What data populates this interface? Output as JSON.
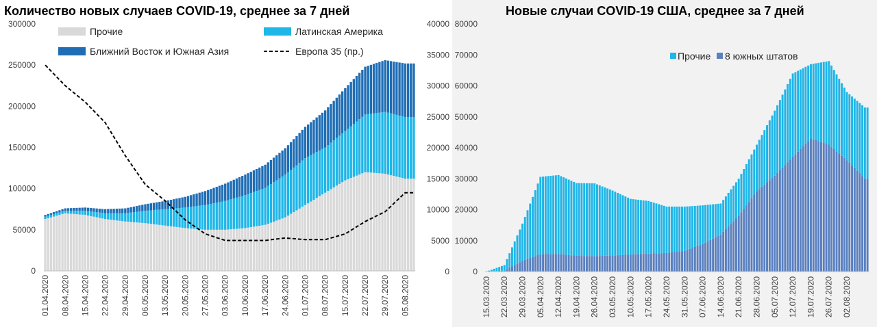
{
  "chart_data": [
    {
      "type": "bar",
      "stacked": true,
      "title": "Количество новых случаев COVID-19, среднее за 7 дней",
      "ylim": [
        0,
        300000
      ],
      "y_ticks": [
        "300000",
        "250000",
        "200000",
        "150000",
        "100000",
        "50000",
        "0"
      ],
      "y2lim": [
        0,
        300
      ],
      "x_tick_labels": [
        "01.04.2020",
        "08.04.2020",
        "15.04.2020",
        "22.04.2020",
        "29.04.2020",
        "06.05.2020",
        "13.05.2020",
        "20.05.2020",
        "27.05.2020",
        "03.06.2020",
        "10.06.2020",
        "17.06.2020",
        "24.06.2020",
        "01.07.2020",
        "08.07.2020",
        "15.07.2020",
        "22.07.2020",
        "29.07.2020",
        "05.08.2020"
      ],
      "x_tick_days": [
        0,
        7,
        14,
        21,
        28,
        35,
        42,
        49,
        56,
        63,
        70,
        77,
        84,
        91,
        98,
        105,
        112,
        119,
        126
      ],
      "grid": false,
      "legend_position": "top",
      "legend": {
        "others": "Прочие",
        "latam": "Латинская Америка",
        "me_sa": "Ближний Восток и Южная Азия",
        "europe": "Европа 35 (пр.)"
      },
      "colors": {
        "others": "#d9d9d9",
        "latam": "#1fb6e8",
        "me_sa": "#1f6eb5",
        "europe": "#000000"
      },
      "series": [
        {
          "name": "Прочие",
          "key": "others",
          "days": [
            0,
            7,
            14,
            21,
            28,
            35,
            42,
            49,
            56,
            63,
            70,
            77,
            84,
            91,
            98,
            105,
            112,
            119,
            126
          ],
          "values": [
            63000,
            70000,
            68000,
            63000,
            60000,
            58000,
            55000,
            52000,
            50000,
            50000,
            52000,
            56000,
            65000,
            80000,
            95000,
            110000,
            120000,
            118000,
            112000
          ]
        },
        {
          "name": "Латинская Америка",
          "key": "latam",
          "days": [
            0,
            7,
            14,
            21,
            28,
            35,
            42,
            49,
            56,
            63,
            70,
            77,
            84,
            91,
            98,
            105,
            112,
            119,
            126
          ],
          "values": [
            3000,
            3000,
            5000,
            7000,
            10000,
            15000,
            20000,
            25000,
            30000,
            35000,
            40000,
            45000,
            52000,
            57000,
            55000,
            60000,
            70000,
            75000,
            75000
          ]
        },
        {
          "name": "Ближний Восток и Южная Азия",
          "key": "me_sa",
          "days": [
            0,
            7,
            14,
            21,
            28,
            35,
            42,
            49,
            56,
            63,
            70,
            77,
            84,
            91,
            98,
            105,
            112,
            119,
            126
          ],
          "values": [
            2000,
            3000,
            4000,
            5000,
            6000,
            8000,
            10000,
            13000,
            17000,
            21000,
            25000,
            28000,
            32000,
            38000,
            45000,
            52000,
            58000,
            63000,
            65000
          ]
        },
        {
          "name": "Европа 35 (пр.)",
          "key": "europe",
          "axis": "secondary",
          "days": [
            0,
            7,
            14,
            21,
            28,
            35,
            42,
            49,
            56,
            63,
            70,
            77,
            84,
            91,
            98,
            105,
            112,
            119,
            126
          ],
          "values": [
            250,
            225,
            205,
            180,
            140,
            105,
            85,
            62,
            45,
            37,
            37,
            37,
            40,
            38,
            38,
            45,
            60,
            72,
            95
          ]
        }
      ]
    },
    {
      "type": "bar",
      "stacked": true,
      "title": "Новые случаи COVID-19  США, среднее за 7 дней",
      "ylim": [
        0,
        80000
      ],
      "y_ticks": [
        "80000",
        "70000",
        "60000",
        "50000",
        "40000",
        "30000",
        "20000",
        "10000",
        "0"
      ],
      "y_ticks_outer": [
        "40000",
        "35000",
        "30000",
        "25000",
        "20000",
        "15000",
        "10000",
        "5000",
        "0"
      ],
      "x_tick_labels": [
        "15.03.2020",
        "22.03.2020",
        "29.03.2020",
        "05.04.2020",
        "12.04.2020",
        "19.04.2020",
        "26.04.2020",
        "03.05.2020",
        "10.05.2020",
        "17.05.2020",
        "24.05.2020",
        "31.05.2020",
        "07.06.2020",
        "14.06.2020",
        "21.06.2020",
        "28.06.2020",
        "05.07.2020",
        "12.07.2020",
        "19.07.2020",
        "26.07.2020",
        "02.08.2020"
      ],
      "x_tick_days": [
        0,
        7,
        14,
        21,
        28,
        35,
        42,
        49,
        56,
        63,
        70,
        77,
        84,
        91,
        98,
        105,
        112,
        119,
        126,
        133,
        140
      ],
      "grid": false,
      "legend_position": "top",
      "legend": {
        "others": "Прочие",
        "south": "8 южных штатов"
      },
      "colors": {
        "others": "#1fb6e8",
        "south": "#5a80c0"
      },
      "series": [
        {
          "name": "8 южных штатов",
          "key": "south",
          "days": [
            0,
            7,
            14,
            21,
            28,
            35,
            42,
            49,
            56,
            63,
            70,
            77,
            84,
            91,
            98,
            105,
            112,
            119,
            126,
            133,
            140,
            147
          ],
          "values": [
            0,
            300,
            3500,
            5600,
            5700,
            5100,
            5000,
            5200,
            5500,
            5800,
            6000,
            6700,
            8900,
            12000,
            18000,
            26000,
            31000,
            37000,
            43000,
            41000,
            36000,
            30000
          ]
        },
        {
          "name": "Прочие",
          "key": "others",
          "days": [
            0,
            7,
            14,
            21,
            28,
            35,
            42,
            49,
            56,
            63,
            70,
            77,
            84,
            91,
            98,
            105,
            112,
            119,
            126,
            133,
            140,
            147
          ],
          "values": [
            0,
            1800,
            12000,
            25000,
            25500,
            23500,
            23500,
            21000,
            18000,
            17000,
            15000,
            14300,
            12500,
            10000,
            12000,
            15000,
            21000,
            27000,
            24000,
            27000,
            22000,
            23000
          ]
        }
      ]
    }
  ]
}
